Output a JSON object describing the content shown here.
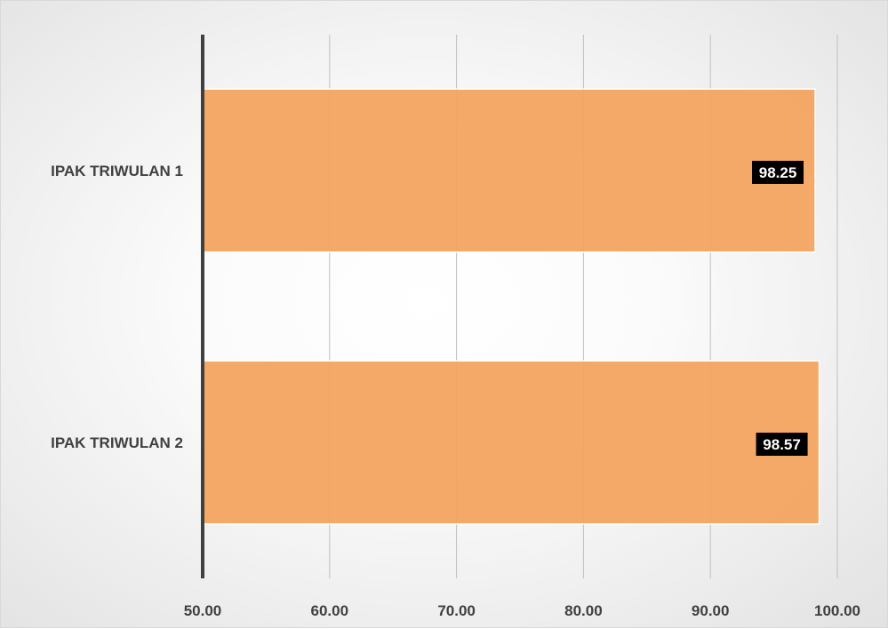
{
  "chart_data": {
    "type": "bar",
    "orientation": "horizontal",
    "categories": [
      "IPAK TRIWULAN 1",
      "IPAK TRIWULAN 2"
    ],
    "values": [
      98.25,
      98.57
    ],
    "data_labels": [
      "98.25",
      "98.57"
    ],
    "x_ticks": [
      "50.00",
      "60.00",
      "70.00",
      "80.00",
      "90.00",
      "100.00"
    ],
    "xlim": [
      50,
      100
    ],
    "grid": true,
    "legend": false,
    "bar_color": "#F4A460",
    "data_label_bg": "#000000"
  }
}
